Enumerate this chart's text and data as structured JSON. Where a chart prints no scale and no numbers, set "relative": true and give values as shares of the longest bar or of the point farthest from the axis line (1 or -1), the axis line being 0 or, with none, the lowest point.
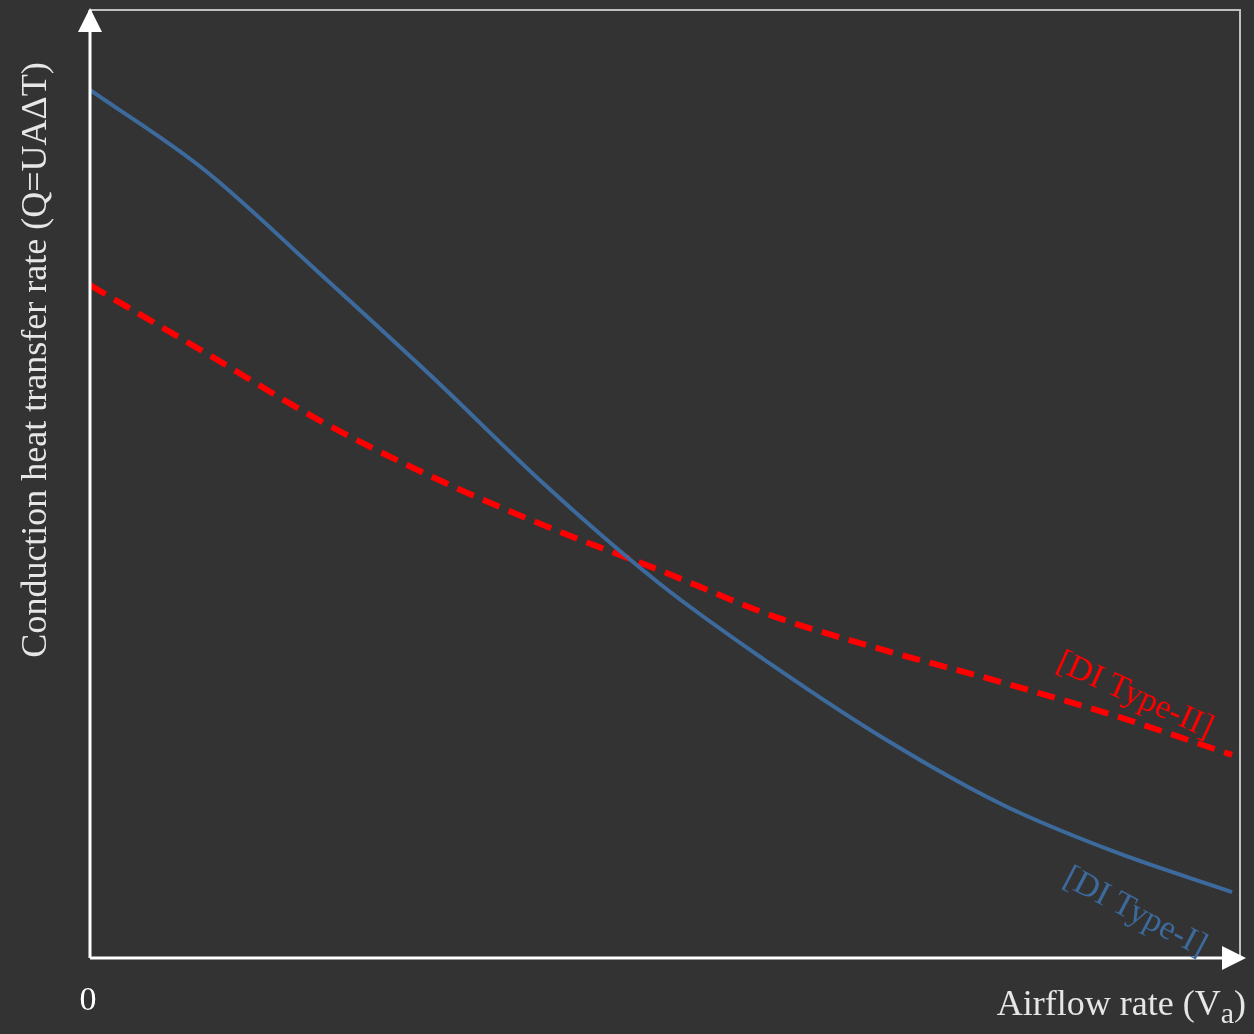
{
  "chart_data": {
    "type": "line",
    "relative": true,
    "xlabel": "Airflow rate (V$_{a}$)",
    "annotations": [
      "0"
    ],
    "ylabel": "Conduction heat transfer rate (Q=UAΔT)",
    "categories": [
      null,
      null,
      null,
      null,
      null,
      null,
      null,
      null,
      null,
      null,
      null
    ],
    "series": [
      {
        "name": "[DI Type-I]",
        "color": "#3d6a9c",
        "line_style": "solid",
        "values": [
          1,
          0.908,
          0.79,
          0.669,
          0.543,
          0.43,
          0.335,
          0.249,
          0.176,
          0.121,
          0.076
        ]
      },
      {
        "name": "[DI Type-II]",
        "color": "#ff0000",
        "line_style": "dashed",
        "values": [
          0.775,
          0.698,
          0.62,
          0.554,
          0.497,
          0.446,
          0.393,
          0.353,
          0.317,
          0.278,
          0.234
        ]
      }
    ],
    "grid": false,
    "legend": false,
    "marker": "none"
  }
}
